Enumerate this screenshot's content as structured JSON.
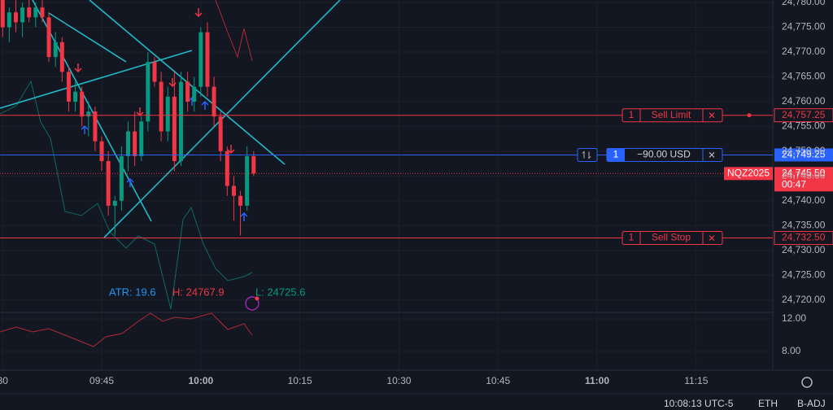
{
  "chart_data": {
    "type": "candlestick",
    "x": [
      570,
      571,
      572,
      573,
      574,
      575,
      576,
      577,
      578,
      579,
      580,
      581,
      582,
      583,
      584,
      585,
      586,
      587,
      588,
      589,
      590,
      591,
      592,
      593,
      594,
      595,
      596,
      597,
      598,
      599,
      600,
      601,
      602,
      603,
      604,
      605,
      606,
      607,
      608
    ],
    "open": [
      24781,
      24775,
      24778,
      24776,
      24779,
      24777,
      24779,
      24777,
      24769,
      24772,
      24766,
      24760,
      24762,
      24757,
      24758,
      24752,
      24748,
      24739,
      24740,
      24749,
      24754,
      24749,
      24756,
      24768,
      24764,
      24754,
      24761,
      24748,
      24764,
      24760,
      24763,
      24774,
      24763,
      24757,
      24750,
      24743,
      24741,
      24739,
      24749
    ],
    "high": [
      24782,
      24779,
      24781,
      24780,
      24781,
      24780,
      24781,
      24778,
      24774,
      24773,
      24767,
      24764,
      24763,
      24760,
      24759,
      24753,
      24750,
      24741,
      24751,
      24756,
      24758,
      24757,
      24770,
      24769,
      24766,
      24763,
      24766,
      24766,
      24766,
      24765,
      24775,
      24776,
      24765,
      24758,
      24751,
      24745,
      24742,
      24751,
      24750
    ],
    "low": [
      24773,
      24772,
      24774,
      24773,
      24776,
      24775,
      24776,
      24768,
      24767,
      24764,
      24758,
      24758,
      24755,
      24753,
      24750,
      24746,
      24737,
      24733,
      24738,
      24746,
      24747,
      24748,
      24754,
      24763,
      24752,
      24752,
      24746,
      24747,
      24758,
      24758,
      24761,
      24761,
      24755,
      24748,
      24741,
      24736,
      24733,
      24738,
      24745
    ],
    "close": [
      24775,
      24778,
      24776,
      24779,
      24777,
      24779,
      24777,
      24769,
      24772,
      24766,
      24760,
      24762,
      24757,
      24758,
      24752,
      24748,
      24739,
      24740,
      24749,
      24754,
      24749,
      24756,
      24768,
      24764,
      24754,
      24761,
      24748,
      24764,
      24760,
      24763,
      24774,
      24763,
      24757,
      24750,
      24743,
      24741,
      24739,
      24749,
      24745.5
    ],
    "up_color": "#089981",
    "down_color": "#f23645",
    "xlim": [
      569.6,
      686.6
    ],
    "xticks": [
      {
        "value": 570,
        "label": "30"
      },
      {
        "value": 585,
        "label": "09:45"
      },
      {
        "value": 600,
        "label": "10:00"
      },
      {
        "value": 615,
        "label": "10:15"
      },
      {
        "value": 630,
        "label": "10:30"
      },
      {
        "value": 645,
        "label": "10:45"
      },
      {
        "value": 660,
        "label": "11:00"
      },
      {
        "value": 675,
        "label": "11:15"
      }
    ],
    "ylim": [
      24717,
      24780.5
    ],
    "yticks": [
      {
        "value": 24720,
        "label": "24,720.00"
      },
      {
        "value": 24725,
        "label": "24,725.00"
      },
      {
        "value": 24730,
        "label": "24,730.00"
      },
      {
        "value": 24735,
        "label": "24,735.00"
      },
      {
        "value": 24740,
        "label": "24,740.00"
      },
      {
        "value": 24745,
        "label": "24,745.00"
      },
      {
        "value": 24750,
        "label": "24,750.00"
      },
      {
        "value": 24755,
        "label": "24,755.00"
      },
      {
        "value": 24760,
        "label": "24,760.00"
      },
      {
        "value": 24765,
        "label": "24,765.00"
      },
      {
        "value": 24770,
        "label": "24,770.00"
      },
      {
        "value": 24775,
        "label": "24,775.00"
      },
      {
        "value": 24780,
        "label": "24,780.00"
      }
    ],
    "lower_pane": {
      "ylim": [
        5.7,
        12.7
      ],
      "yticks": [
        {
          "value": 12,
          "label": "12.00"
        },
        {
          "value": 8,
          "label": "8.00"
        }
      ]
    },
    "legend": {
      "atr": "ATR: 19.6",
      "high": "H: 24767.9",
      "low": "L: 24725.6"
    },
    "orders": [
      {
        "qty": 1,
        "label": "Sell Limit",
        "price": {
          "value": 24757.25,
          "label": "24,757.25"
        }
      },
      {
        "qty": 1,
        "label": "Sell Stop",
        "price": {
          "value": 24732.5,
          "label": "24,732.50"
        }
      }
    ],
    "position": {
      "qty": 1,
      "pnl": {
        "value": -90,
        "label": "−90.00 USD"
      },
      "price": {
        "value": 24749.25,
        "label": "24,749.25"
      }
    },
    "last_price": {
      "symbol": "NQZ2025",
      "price": {
        "value": 24745.5,
        "label": "24,745.50"
      },
      "countdown": "00:47"
    },
    "status_bar": {
      "time": "10:08:13 UTC-5",
      "session": "ETH",
      "adjustment": "B-ADJ"
    }
  }
}
